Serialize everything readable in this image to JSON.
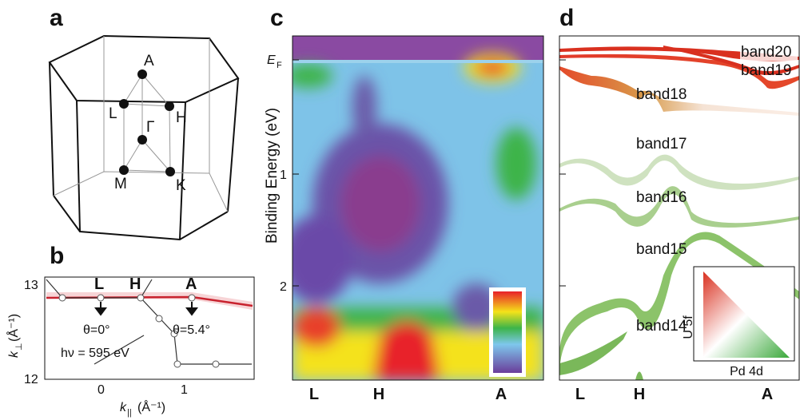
{
  "panels": {
    "a": {
      "label": "a",
      "points": {
        "A": "A",
        "L": "L",
        "H": "H",
        "G": "Γ",
        "M": "M",
        "K": "K"
      }
    },
    "b": {
      "label": "b",
      "y_label": "k",
      "y_sub": "⊥",
      "y_unit": "(Å⁻¹)",
      "yticks": [
        "13",
        "12"
      ],
      "x_label": "k",
      "x_sub": "||",
      "x_unit": "(Å⁻¹)",
      "xticks": [
        "0",
        "1"
      ],
      "points": [
        "L",
        "H",
        "A"
      ],
      "angle_left": "θ=0°",
      "angle_right": "θ=5.4°",
      "photon": "hν = 595 eV"
    },
    "c": {
      "label": "c",
      "ef": "E",
      "ef_sub": "F",
      "yticks": [
        "1",
        "2"
      ],
      "y_label": "Binding Energy (eV)",
      "xticks": [
        "L",
        "H",
        "A"
      ]
    },
    "d": {
      "label": "d",
      "bands": [
        "band20",
        "band19",
        "band18",
        "band17",
        "band16",
        "band15",
        "band14"
      ],
      "legend_y": "U 5f",
      "legend_x": "Pd 4d",
      "xticks": [
        "L",
        "H",
        "A"
      ]
    }
  }
}
